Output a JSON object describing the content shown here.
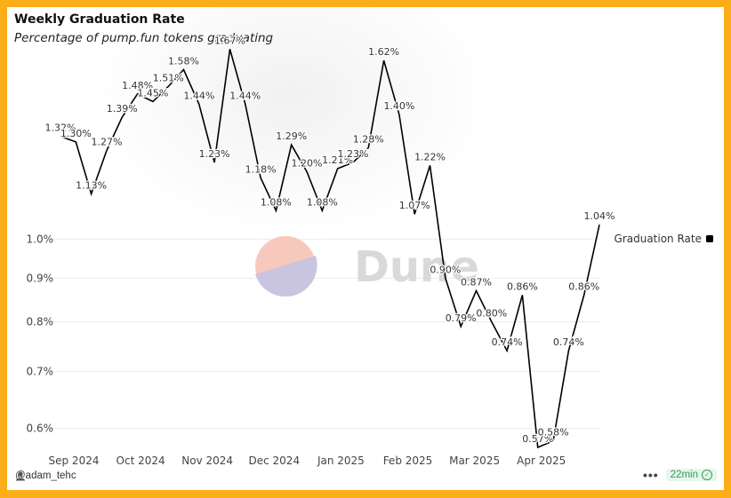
{
  "title": "Weekly Graduation Rate",
  "subtitle": "Percentage of pump.fun tokens graduating",
  "watermark": "Dune",
  "footer": {
    "user": "@adam_tehc",
    "menu": "•••",
    "refresh": "22min"
  },
  "colors": {
    "frame": "#fbae17",
    "line": "#000000",
    "badge_text": "#2e9e57"
  },
  "chart_data": {
    "type": "line",
    "title": "Weekly Graduation Rate",
    "subtitle": "Percentage of pump.fun tokens graduating",
    "y_scale": "log",
    "ylim": [
      0.0057,
      0.017
    ],
    "y_ticks": [
      {
        "value": 0.006,
        "label": "0.6%"
      },
      {
        "value": 0.007,
        "label": "0.7%"
      },
      {
        "value": 0.008,
        "label": "0.8%"
      },
      {
        "value": 0.009,
        "label": "0.9%"
      },
      {
        "value": 0.01,
        "label": "1.0%"
      }
    ],
    "x_ticks": [
      "Sep 2024",
      "Oct 2024",
      "Nov 2024",
      "Dec 2024",
      "Jan 2025",
      "Feb 2025",
      "Mar 2025",
      "Apr 2025"
    ],
    "legend": {
      "position": "right",
      "label": "Graduation Rate"
    },
    "grid": true,
    "series": [
      {
        "name": "Graduation Rate",
        "x": [
          "2024-08-26",
          "2024-09-02",
          "2024-09-09",
          "2024-09-16",
          "2024-09-23",
          "2024-09-30",
          "2024-10-07",
          "2024-10-14",
          "2024-10-21",
          "2024-10-28",
          "2024-11-04",
          "2024-11-11",
          "2024-11-18",
          "2024-11-25",
          "2024-12-02",
          "2024-12-09",
          "2024-12-16",
          "2024-12-23",
          "2024-12-30",
          "2025-01-06",
          "2025-01-13",
          "2025-01-20",
          "2025-01-27",
          "2025-02-03",
          "2025-02-10",
          "2025-02-17",
          "2025-02-24",
          "2025-03-03",
          "2025-03-10",
          "2025-03-17",
          "2025-03-24",
          "2025-03-31",
          "2025-04-07",
          "2025-04-14",
          "2025-04-21",
          "2025-04-28"
        ],
        "values": [
          1.32,
          1.3,
          1.13,
          1.27,
          1.39,
          1.48,
          1.45,
          1.51,
          1.58,
          1.44,
          1.23,
          1.67,
          1.44,
          1.18,
          1.08,
          1.29,
          1.2,
          1.08,
          1.21,
          1.23,
          1.28,
          1.62,
          1.4,
          1.07,
          1.22,
          0.9,
          0.79,
          0.87,
          0.8,
          0.74,
          0.86,
          0.57,
          0.58,
          0.74,
          0.86,
          1.04
        ],
        "labels": [
          "1.32%",
          "1.30%",
          "1.13%",
          "1.27%",
          "1.39%",
          "1.48%",
          "1.45%",
          "1.51%",
          "1.58%",
          "1.44%",
          "1.23%",
          "1.67%",
          "1.44%",
          "1.18%",
          "1.08%",
          "1.29%",
          "1.20%",
          "1.08%",
          "1.21%",
          "1.23%",
          "1.28%",
          "1.62%",
          "1.40%",
          "1.07%",
          "1.22%",
          "0.90%",
          "0.79%",
          "0.87%",
          "0.80%",
          "0.74%",
          "0.86%",
          "0.57%",
          "0.58%",
          "0.74%",
          "0.86%",
          "1.04%"
        ]
      }
    ]
  }
}
